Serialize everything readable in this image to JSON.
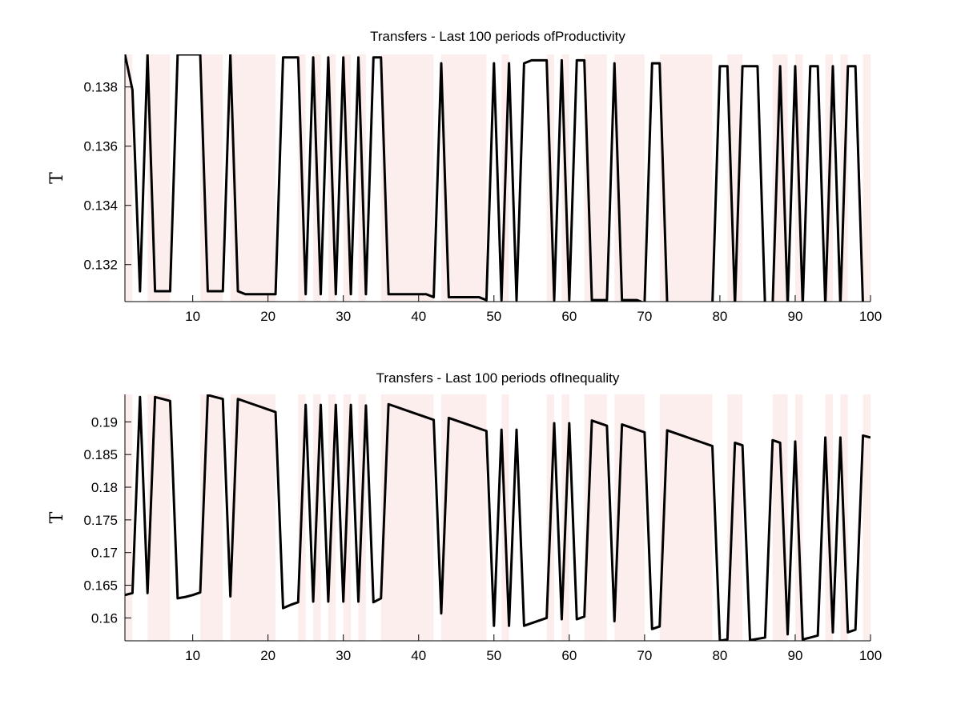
{
  "chart_data": [
    {
      "type": "line",
      "title": "Transfers - Last 100 periods ofProductivity",
      "xlabel": "",
      "ylabel": "T",
      "xlim": [
        1,
        100
      ],
      "ylim": [
        0.13075,
        0.1391
      ],
      "xticks": [
        10,
        20,
        30,
        40,
        50,
        60,
        70,
        80,
        90,
        100
      ],
      "yticks": [
        0.132,
        0.134,
        0.136,
        0.138
      ],
      "ytick_labels": [
        "0.132",
        "0.134",
        "0.136",
        "0.138"
      ],
      "grid": false,
      "recession_bands": [
        [
          1,
          2
        ],
        [
          4,
          7
        ],
        [
          11,
          14
        ],
        [
          15,
          21
        ],
        [
          24,
          25
        ],
        [
          26,
          27
        ],
        [
          28,
          29
        ],
        [
          30,
          31
        ],
        [
          32,
          33
        ],
        [
          35,
          42
        ],
        [
          43,
          49
        ],
        [
          51,
          52
        ],
        [
          57,
          58
        ],
        [
          59,
          60
        ],
        [
          62,
          65
        ],
        [
          66,
          70
        ],
        [
          72,
          79
        ],
        [
          81,
          83
        ],
        [
          87,
          89
        ],
        [
          90,
          91
        ],
        [
          94,
          95
        ],
        [
          96,
          97
        ],
        [
          99,
          100
        ]
      ],
      "series": [
        {
          "x": [
            1,
            2,
            3,
            4,
            5,
            6,
            7,
            8,
            9,
            10,
            11,
            12,
            13,
            14,
            15,
            16,
            17,
            18,
            19,
            20,
            21,
            22,
            23,
            24,
            25,
            26,
            27,
            28,
            29,
            30,
            31,
            32,
            33,
            34,
            35,
            36,
            37,
            38,
            39,
            40,
            41,
            42,
            43,
            44,
            45,
            46,
            47,
            48,
            49,
            50,
            51,
            52,
            53,
            54,
            55,
            56,
            57,
            58,
            59,
            60,
            61,
            62,
            63,
            64,
            65,
            66,
            67,
            68,
            69,
            70,
            71,
            72,
            73,
            74,
            75,
            76,
            77,
            78,
            79,
            80,
            81,
            82,
            83,
            84,
            85,
            86,
            87,
            88,
            89,
            90,
            91,
            92,
            93,
            94,
            95,
            96,
            97,
            98,
            99,
            100
          ],
          "values": [
            0.1391,
            0.1379,
            0.1311,
            0.1391,
            0.1311,
            0.1311,
            0.1311,
            0.1391,
            0.1391,
            0.1391,
            0.1391,
            0.1311,
            0.1311,
            0.1311,
            0.1391,
            0.1311,
            0.131,
            0.131,
            0.131,
            0.131,
            0.131,
            0.139,
            0.139,
            0.139,
            0.131,
            0.139,
            0.131,
            0.139,
            0.131,
            0.139,
            0.131,
            0.139,
            0.131,
            0.139,
            0.139,
            0.131,
            0.131,
            0.131,
            0.131,
            0.131,
            0.131,
            0.1309,
            0.1388,
            0.1309,
            0.1309,
            0.1309,
            0.1309,
            0.1309,
            0.1308,
            0.1388,
            0.1308,
            0.1388,
            0.1308,
            0.1388,
            0.1389,
            0.1389,
            0.1389,
            0.1308,
            0.1389,
            0.1308,
            0.1389,
            0.1389,
            0.1308,
            0.1308,
            0.1308,
            0.1388,
            0.1308,
            0.1308,
            0.1308,
            0.1307,
            0.1388,
            0.1388,
            0.1307,
            0.1307,
            0.1307,
            0.1307,
            0.1307,
            0.1307,
            0.1306,
            0.1387,
            0.1387,
            0.1306,
            0.1387,
            0.1387,
            0.1387,
            0.1306,
            0.1306,
            0.1387,
            0.1306,
            0.1387,
            0.1306,
            0.1387,
            0.1387,
            0.1306,
            0.1387,
            0.1306,
            0.1387,
            0.1387,
            0.1306,
            0.1306
          ]
        }
      ]
    },
    {
      "type": "line",
      "title": "Transfers - Last 100 periods ofInequality",
      "xlabel": "",
      "ylabel": "T",
      "xlim": [
        1,
        100
      ],
      "ylim": [
        0.1565,
        0.1942
      ],
      "xticks": [
        10,
        20,
        30,
        40,
        50,
        60,
        70,
        80,
        90,
        100
      ],
      "yticks": [
        0.16,
        0.165,
        0.17,
        0.175,
        0.18,
        0.185,
        0.19
      ],
      "ytick_labels": [
        "0.16",
        "0.165",
        "0.17",
        "0.175",
        "0.18",
        "0.185",
        "0.19"
      ],
      "grid": false,
      "recession_bands": [
        [
          1,
          2
        ],
        [
          4,
          7
        ],
        [
          11,
          14
        ],
        [
          15,
          21
        ],
        [
          24,
          25
        ],
        [
          26,
          27
        ],
        [
          28,
          29
        ],
        [
          30,
          31
        ],
        [
          32,
          33
        ],
        [
          35,
          42
        ],
        [
          43,
          49
        ],
        [
          51,
          52
        ],
        [
          57,
          58
        ],
        [
          59,
          60
        ],
        [
          62,
          65
        ],
        [
          66,
          70
        ],
        [
          72,
          79
        ],
        [
          81,
          83
        ],
        [
          87,
          89
        ],
        [
          90,
          91
        ],
        [
          94,
          95
        ],
        [
          96,
          97
        ],
        [
          99,
          100
        ]
      ],
      "series": [
        {
          "x": [
            1,
            2,
            3,
            4,
            5,
            6,
            7,
            8,
            9,
            10,
            11,
            12,
            13,
            14,
            15,
            16,
            17,
            18,
            19,
            20,
            21,
            22,
            23,
            24,
            25,
            26,
            27,
            28,
            29,
            30,
            31,
            32,
            33,
            34,
            35,
            36,
            37,
            38,
            39,
            40,
            41,
            42,
            43,
            44,
            45,
            46,
            47,
            48,
            49,
            50,
            51,
            52,
            53,
            54,
            55,
            56,
            57,
            58,
            59,
            60,
            61,
            62,
            63,
            64,
            65,
            66,
            67,
            68,
            69,
            70,
            71,
            72,
            73,
            74,
            75,
            76,
            77,
            78,
            79,
            80,
            81,
            82,
            83,
            84,
            85,
            86,
            87,
            88,
            89,
            90,
            91,
            92,
            93,
            94,
            95,
            96,
            97,
            98,
            99,
            100
          ],
          "values": [
            0.1635,
            0.1638,
            0.1938,
            0.1638,
            0.1938,
            0.1935,
            0.1932,
            0.163,
            0.1632,
            0.1635,
            0.1639,
            0.1941,
            0.1938,
            0.1935,
            0.1633,
            0.1935,
            0.1931,
            0.1927,
            0.1923,
            0.1919,
            0.1915,
            0.1615,
            0.162,
            0.1624,
            0.1926,
            0.1625,
            0.1926,
            0.1625,
            0.1926,
            0.1625,
            0.1926,
            0.1625,
            0.1925,
            0.1624,
            0.163,
            0.1927,
            0.1923,
            0.1919,
            0.1915,
            0.1911,
            0.1907,
            0.1903,
            0.1607,
            0.1906,
            0.1902,
            0.1898,
            0.1894,
            0.189,
            0.1886,
            0.1588,
            0.1888,
            0.1588,
            0.1888,
            0.1588,
            0.1592,
            0.1596,
            0.16,
            0.1898,
            0.1598,
            0.1898,
            0.1598,
            0.1602,
            0.1902,
            0.1898,
            0.1894,
            0.1595,
            0.1896,
            0.1892,
            0.1888,
            0.1884,
            0.1583,
            0.1587,
            0.1887,
            0.1883,
            0.1879,
            0.1875,
            0.1871,
            0.1867,
            0.1863,
            0.1565,
            0.1567,
            0.1868,
            0.1864,
            0.1566,
            0.1568,
            0.157,
            0.1872,
            0.1868,
            0.1575,
            0.187,
            0.1567,
            0.157,
            0.1573,
            0.1876,
            0.1578,
            0.1876,
            0.1578,
            0.1582,
            0.1879,
            0.1876
          ]
        }
      ]
    }
  ]
}
